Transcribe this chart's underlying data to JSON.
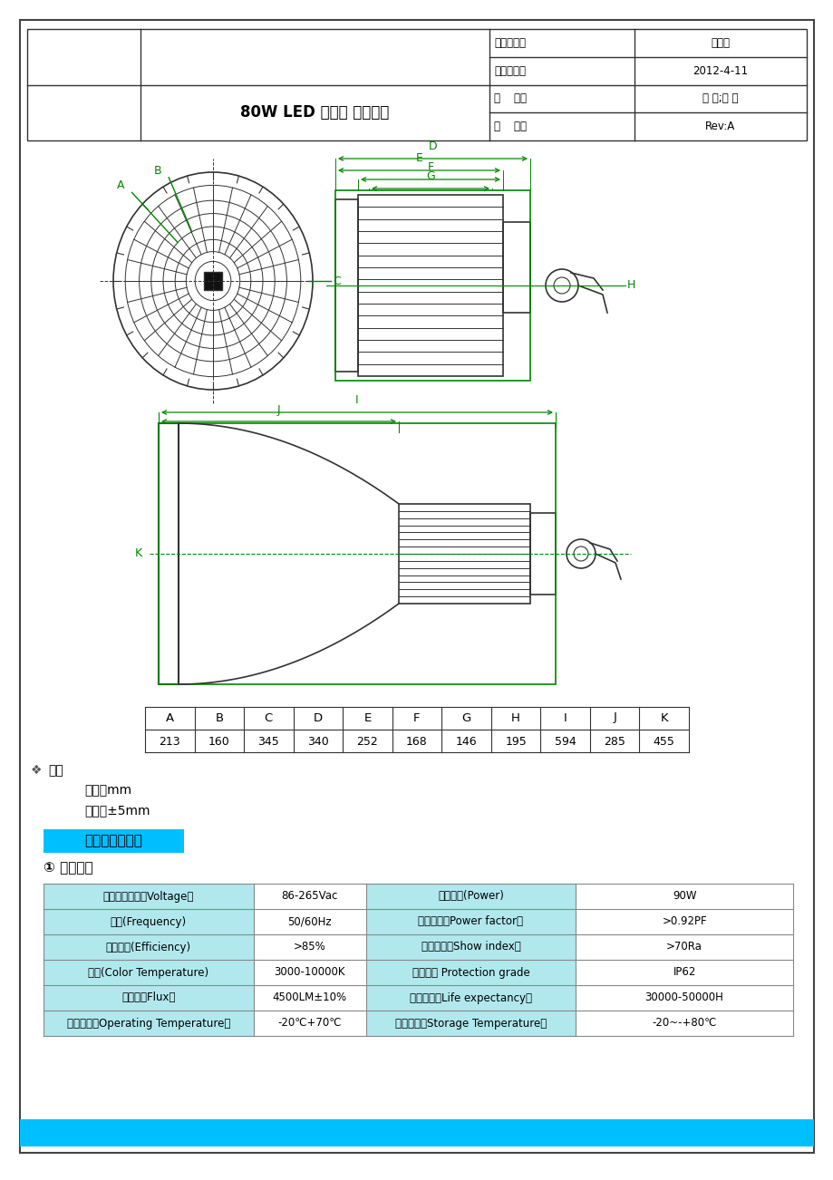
{
  "page_bg": "#ffffff",
  "header": {
    "title": "80W LED 工矿灯 产品规格",
    "fields": [
      [
        "编制部门：",
        "工程部"
      ],
      [
        "发行日期：",
        "2012-4-11"
      ],
      [
        "页    码：",
        "共 页;第 页"
      ],
      [
        "版    本：",
        "Rev:A"
      ]
    ]
  },
  "dim_table": {
    "headers": [
      "A",
      "B",
      "C",
      "D",
      "E",
      "F",
      "G",
      "H",
      "I",
      "J",
      "K"
    ],
    "values": [
      "213",
      "160",
      "345",
      "340",
      "252",
      "168",
      "146",
      "195",
      "594",
      "285",
      "455"
    ]
  },
  "notes": [
    "单位：mm",
    "误差：±5mm"
  ],
  "note_label": "注：",
  "section_title": "《六》产品参数",
  "section_title_bg": "#00BFFF",
  "subsection": "① 电性参数",
  "table_header_bg": "#B0E8EE",
  "table_rows": [
    [
      "电源输入电压（Voltage）",
      "86-265Vac",
      "消耗功率(Power)",
      "90W"
    ],
    [
      "频率(Frequency)",
      "50/60Hz",
      "功率因素（Power factor）",
      ">0.92PF"
    ],
    [
      "电源效率(Efficiency)",
      ">85%",
      "显示指数（Show index）",
      ">70Ra"
    ],
    [
      "色温(Color Temperature)",
      "3000-10000K",
      "防护等级 Protection grade",
      "IP62"
    ],
    [
      "光通量（Flux）",
      "4500LM±10%",
      "平均寿命（Life expectancy）",
      "30000-50000H"
    ],
    [
      "工作温度（Operating Temperature）",
      "-20℃+70℃",
      "储藏温度（Storage Temperature）",
      "-20~-+80℃"
    ]
  ],
  "bottom_bar_color": "#00BFFF",
  "gc": "#008800",
  "gc2": "#333333"
}
